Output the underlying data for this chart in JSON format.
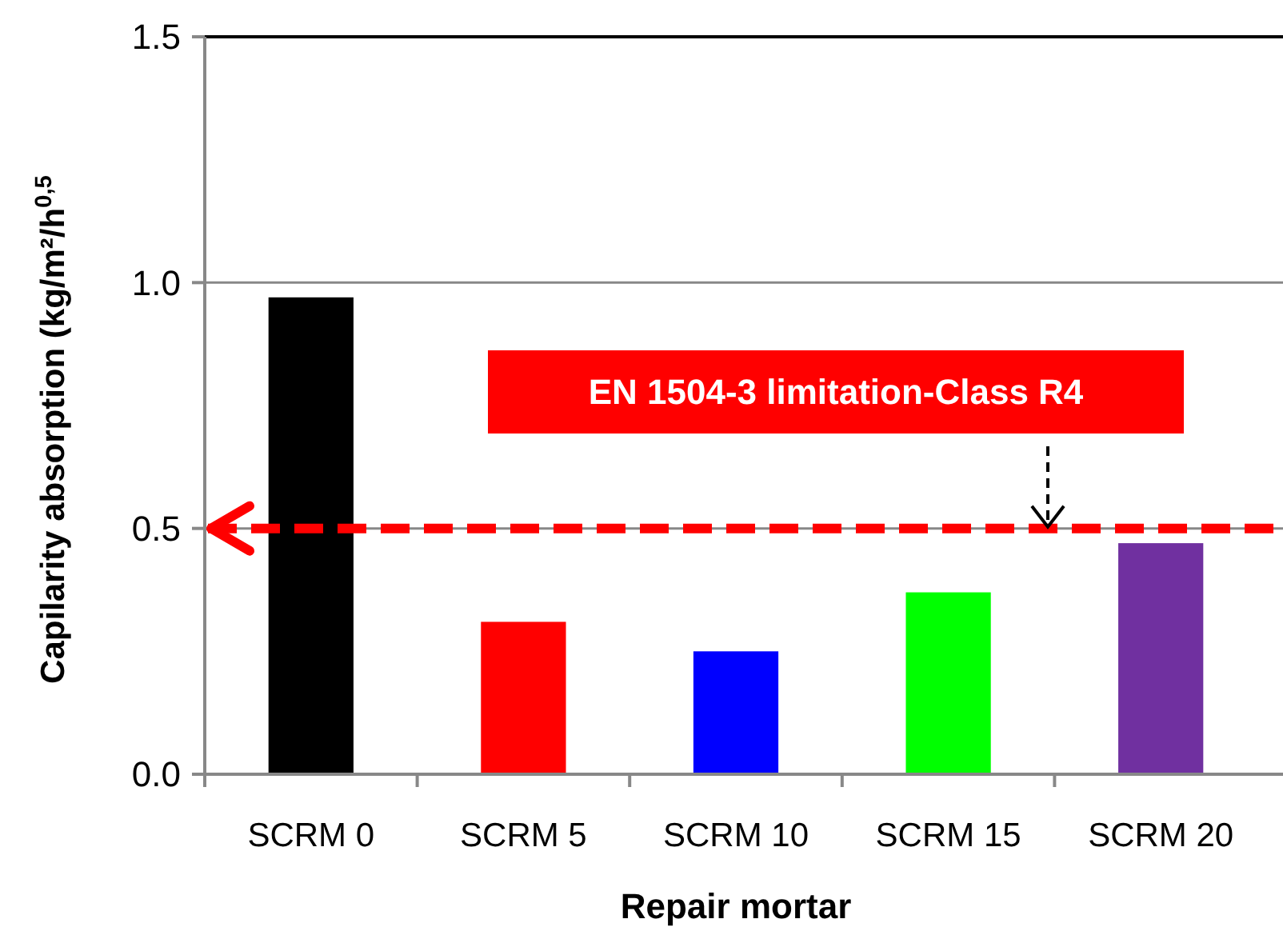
{
  "chart_data": {
    "type": "bar",
    "xlabel": "Repair mortar",
    "ylabel": "Capilarity absorption  (kg/m²/h$^{0,5}$",
    "categories": [
      "SCRM 0",
      "SCRM 5",
      "SCRM 10",
      "SCRM 15",
      "SCRM 20"
    ],
    "values": [
      0.97,
      0.31,
      0.25,
      0.37,
      0.47
    ],
    "colors": [
      "#000000",
      "#ff0000",
      "#0000ff",
      "#00ff00",
      "#7030a0"
    ],
    "ylim": [
      0,
      1.5
    ],
    "yticks": [
      {
        "value": 0,
        "label": "0.0"
      },
      {
        "value": 0.5,
        "label": "0.5"
      },
      {
        "value": 1,
        "label": "1.0"
      },
      {
        "value": 1.5,
        "label": "1.5"
      }
    ],
    "grid": "y",
    "ref_lines": [
      {
        "axis": "y",
        "value": 0.5,
        "label": "EN 1504-3 limitation-Class R4",
        "color": "#ff0000",
        "line_style": "dashed"
      }
    ]
  }
}
